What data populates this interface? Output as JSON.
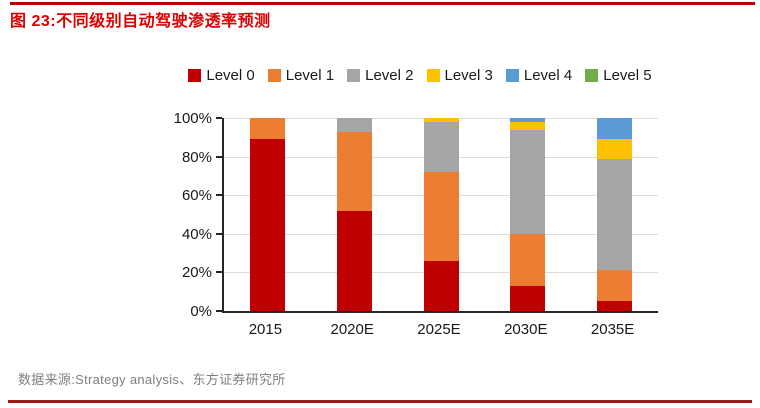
{
  "header": {
    "title": "图 23:不同级别自动驾驶渗透率预测"
  },
  "footer": {
    "source": "数据来源:Strategy analysis、东方证券研究所"
  },
  "colors": {
    "top_rule": "#C00000",
    "title": "#E00000",
    "bottom_rule": "#9E1B1B",
    "axis": "#262626",
    "gridline": "#DCDCDC"
  },
  "chart_data": {
    "type": "bar",
    "stacked": true,
    "grid": true,
    "legend_position": "top",
    "categories": [
      "2015",
      "2020E",
      "2025E",
      "2030E",
      "2035E"
    ],
    "series": [
      {
        "name": "Level 0",
        "color": "#C00000",
        "values": [
          89,
          52,
          26,
          13,
          5
        ]
      },
      {
        "name": "Level 1",
        "color": "#ED7D31",
        "values": [
          11,
          41,
          46,
          27,
          16
        ]
      },
      {
        "name": "Level 2",
        "color": "#A5A5A5",
        "values": [
          0,
          7,
          26,
          54,
          58
        ]
      },
      {
        "name": "Level 3",
        "color": "#FFC000",
        "values": [
          0,
          0,
          2,
          4,
          10
        ]
      },
      {
        "name": "Level 4",
        "color": "#5B9BD5",
        "values": [
          0,
          0,
          0,
          2,
          11
        ]
      },
      {
        "name": "Level 5",
        "color": "#70AD47",
        "values": [
          0,
          0,
          0,
          0,
          0
        ]
      }
    ],
    "ylim": [
      0,
      100
    ],
    "yticks": [
      {
        "value": 0,
        "label": "0%"
      },
      {
        "value": 20,
        "label": "20%"
      },
      {
        "value": 40,
        "label": "40%"
      },
      {
        "value": 60,
        "label": "60%"
      },
      {
        "value": 80,
        "label": "80%"
      },
      {
        "value": 100,
        "label": "100%"
      }
    ],
    "xlabel": "",
    "ylabel": ""
  }
}
